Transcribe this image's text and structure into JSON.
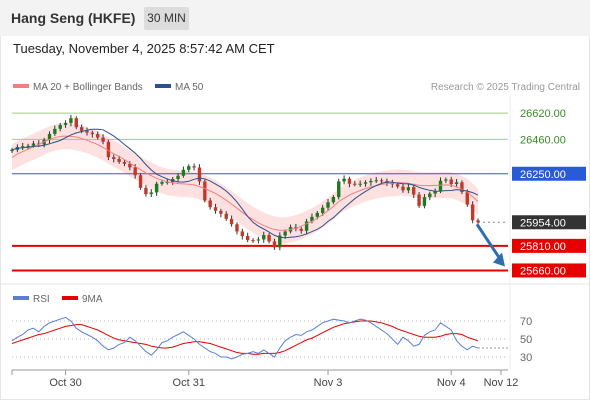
{
  "header": {
    "title": "Hang Seng (HKFE)",
    "timeframe": "30 MIN"
  },
  "timestamp": "Tuesday, November 4, 2025 8:57:42 AM CET",
  "colors": {
    "up": "#1e7a1e",
    "down": "#c0392b",
    "ma20": "#f08080",
    "ma50": "#2d4f8e",
    "bands": "#fddcdc",
    "resistance": "#9dd07a",
    "pivot": "#2a5bd7",
    "support": "#e60000",
    "last": "#333333",
    "arrow": "#2f6fb0",
    "rsi": "#5b7fd6",
    "rsi_ma": "#e60000"
  },
  "chart_data": {
    "type": "candlestick",
    "source": "Research © 2025 Trading Central",
    "legend": [
      "MA 20 + Bollinger Bands",
      "MA 50"
    ],
    "x_ticks": [
      "Oct 30",
      "Oct 31",
      "Nov 3",
      "Nov 4",
      "Nov 12"
    ],
    "ylim": [
      25620,
      26700
    ],
    "levels": [
      {
        "value": 26620.0,
        "label": "26620.00",
        "kind": "resistance"
      },
      {
        "value": 26460.0,
        "label": "26460.00",
        "kind": "resistance"
      },
      {
        "value": 26250.0,
        "label": "26250.00",
        "kind": "pivot"
      },
      {
        "value": 25954.0,
        "label": "25954.00",
        "kind": "last"
      },
      {
        "value": 25810.0,
        "label": "25810.00",
        "kind": "support"
      },
      {
        "value": 25660.0,
        "label": "25660.00",
        "kind": "support"
      }
    ],
    "close": [
      26396,
      26413,
      26418,
      26421,
      26435,
      26429,
      26457,
      26493,
      26524,
      26548,
      26560,
      26589,
      26534,
      26512,
      26501,
      26492,
      26471,
      26445,
      26351,
      26340,
      26322,
      26311,
      26289,
      26241,
      26164,
      26126,
      26136,
      26189,
      26199,
      26200,
      26218,
      26238,
      26274,
      26296,
      26288,
      26203,
      26087,
      26046,
      26024,
      26006,
      25975,
      25942,
      25898,
      25870,
      25845,
      25843,
      25849,
      25876,
      25837,
      25801,
      25873,
      25898,
      25924,
      25914,
      25902,
      25959,
      25987,
      26011,
      26043,
      26076,
      26108,
      26203,
      26220,
      26189,
      26185,
      26189,
      26198,
      26206,
      26210,
      26205,
      26193,
      26186,
      26172,
      26149,
      26168,
      26123,
      26054,
      26107,
      26129,
      26144,
      26208,
      26215,
      26187,
      26198,
      26138,
      26062,
      25966,
      25954
    ],
    "ma20": [
      26350,
      26370,
      26385,
      26400,
      26415,
      26430,
      26445,
      26460,
      26470,
      26478,
      26480,
      26478,
      26474,
      26465,
      26455,
      26442,
      26428,
      26410,
      26392,
      26372,
      26355,
      26335,
      26315,
      26295,
      26275,
      26255,
      26238,
      26222,
      26210,
      26200,
      26195,
      26190,
      26188,
      26186,
      26182,
      26172,
      26160,
      26145,
      26130,
      26110,
      26088,
      26065,
      26040,
      26015,
      25990,
      25970,
      25950,
      25935,
      25920,
      25910,
      25905,
      25905,
      25910,
      25918,
      25930,
      25945,
      25960,
      25980,
      26000,
      26025,
      26050,
      26080,
      26100,
      26120,
      26135,
      26148,
      26160,
      26170,
      26178,
      26185,
      26190,
      26193,
      26196,
      26195,
      26192,
      26185,
      26180,
      26178,
      26178,
      26179,
      26180,
      26182,
      26180,
      26170,
      26155,
      26140,
      26110,
      26080
    ],
    "rsi": [
      48,
      52,
      55,
      60,
      62,
      58,
      64,
      68,
      70,
      72,
      74,
      70,
      62,
      58,
      55,
      52,
      48,
      42,
      38,
      40,
      44,
      46,
      52,
      48,
      42,
      36,
      32,
      38,
      46,
      48,
      52,
      55,
      58,
      54,
      50,
      44,
      40,
      36,
      34,
      30,
      30,
      28,
      30,
      33,
      34,
      36,
      34,
      38,
      34,
      30,
      40,
      48,
      52,
      55,
      54,
      58,
      60,
      64,
      68,
      70,
      72,
      71,
      70,
      68,
      70,
      72,
      71,
      68,
      64,
      60,
      56,
      50,
      44,
      52,
      48,
      42,
      44,
      54,
      58,
      60,
      68,
      64,
      60,
      48,
      42,
      38,
      42,
      40
    ],
    "rsi_ma": [
      45,
      47,
      49,
      51,
      53,
      55,
      56,
      58,
      60,
      62,
      64,
      65,
      66,
      66,
      64,
      62,
      60,
      57,
      54,
      51,
      49,
      48,
      47,
      46,
      45,
      44,
      42,
      41,
      40,
      40,
      41,
      43,
      45,
      46,
      47,
      47,
      46,
      45,
      43,
      41,
      39,
      37,
      35,
      34,
      34,
      33,
      33,
      34,
      34,
      34,
      35,
      37,
      40,
      43,
      46,
      49,
      51,
      54,
      57,
      60,
      63,
      65,
      67,
      68,
      69,
      70,
      70,
      70,
      69,
      68,
      66,
      64,
      61,
      59,
      57,
      55,
      53,
      52,
      52,
      52,
      53,
      55,
      56,
      56,
      55,
      52,
      50,
      48
    ],
    "rsi_levels": [
      70,
      50,
      30
    ],
    "rsi_legend": [
      "RSI",
      "9MA"
    ]
  }
}
